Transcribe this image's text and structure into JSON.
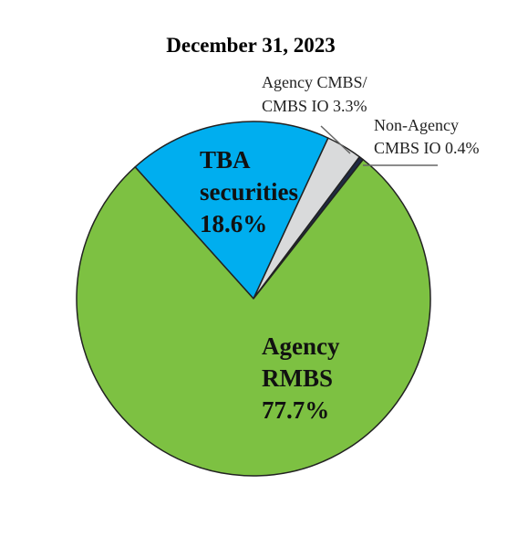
{
  "chart_data": {
    "type": "pie",
    "title": "December 31, 2023",
    "slices": [
      {
        "name": "Agency RMBS",
        "value": 77.7,
        "color": "#7dc142",
        "label_lines": [
          "Agency",
          "RMBS",
          "77.7%"
        ]
      },
      {
        "name": "TBA securities",
        "value": 18.6,
        "color": "#00aeef",
        "label_lines": [
          "TBA",
          "securities",
          "18.6%"
        ]
      },
      {
        "name": "Agency CMBS/ CMBS IO",
        "value": 3.3,
        "color": "#d9dadb",
        "label_lines": [
          "Agency CMBS/",
          "CMBS IO 3.3%"
        ]
      },
      {
        "name": "Non-Agency CMBS IO",
        "value": 0.4,
        "color": "#1f2a44",
        "label_lines": [
          "Non-Agency",
          "CMBS IO 0.4%"
        ]
      }
    ]
  }
}
